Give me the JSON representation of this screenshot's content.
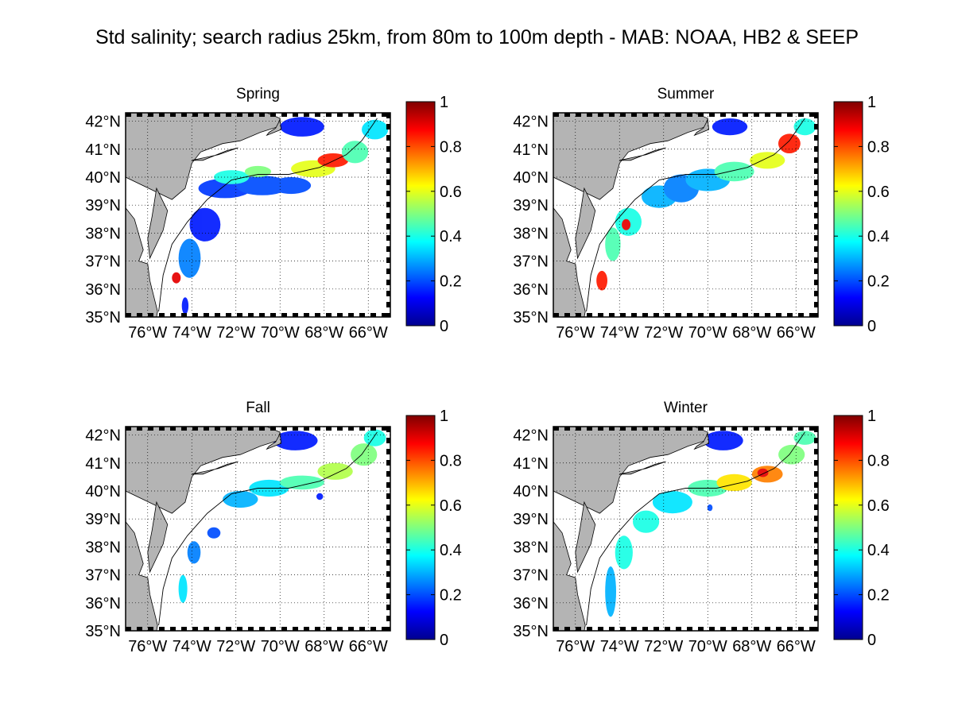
{
  "figure": {
    "title": "Std salinity; search radius 25km, from 80m to 100m depth - MAB: NOAA, HB2 & SEEP"
  },
  "map": {
    "lon_range": [
      -77,
      -65
    ],
    "lat_range": [
      35,
      42.3
    ],
    "lon_ticks": [
      {
        "value": -76,
        "label": "76°W"
      },
      {
        "value": -74,
        "label": "74°W"
      },
      {
        "value": -72,
        "label": "72°W"
      },
      {
        "value": -70,
        "label": "70°W"
      },
      {
        "value": -68,
        "label": "68°W"
      },
      {
        "value": -66,
        "label": "66°W"
      }
    ],
    "lat_ticks": [
      {
        "value": 35,
        "label": "35°N"
      },
      {
        "value": 36,
        "label": "36°N"
      },
      {
        "value": 37,
        "label": "37°N"
      },
      {
        "value": 38,
        "label": "38°N"
      },
      {
        "value": 39,
        "label": "39°N"
      },
      {
        "value": 40,
        "label": "40°N"
      },
      {
        "value": 41,
        "label": "41°N"
      },
      {
        "value": 42,
        "label": "42°N"
      }
    ],
    "grid": true,
    "land_color": "#b4b4b4",
    "ocean_color": "#ffffff"
  },
  "colorbar": {
    "range": [
      0,
      1
    ],
    "ticks": [
      {
        "value": 0,
        "label": "0"
      },
      {
        "value": 0.2,
        "label": "0.2"
      },
      {
        "value": 0.4,
        "label": "0.4"
      },
      {
        "value": 0.6,
        "label": "0.6"
      },
      {
        "value": 0.8,
        "label": "0.8"
      },
      {
        "value": 1,
        "label": "1"
      }
    ],
    "colormap": "jet"
  },
  "panels": [
    {
      "title": "Spring"
    },
    {
      "title": "Summer"
    },
    {
      "title": "Fall"
    },
    {
      "title": "Winter"
    }
  ]
}
